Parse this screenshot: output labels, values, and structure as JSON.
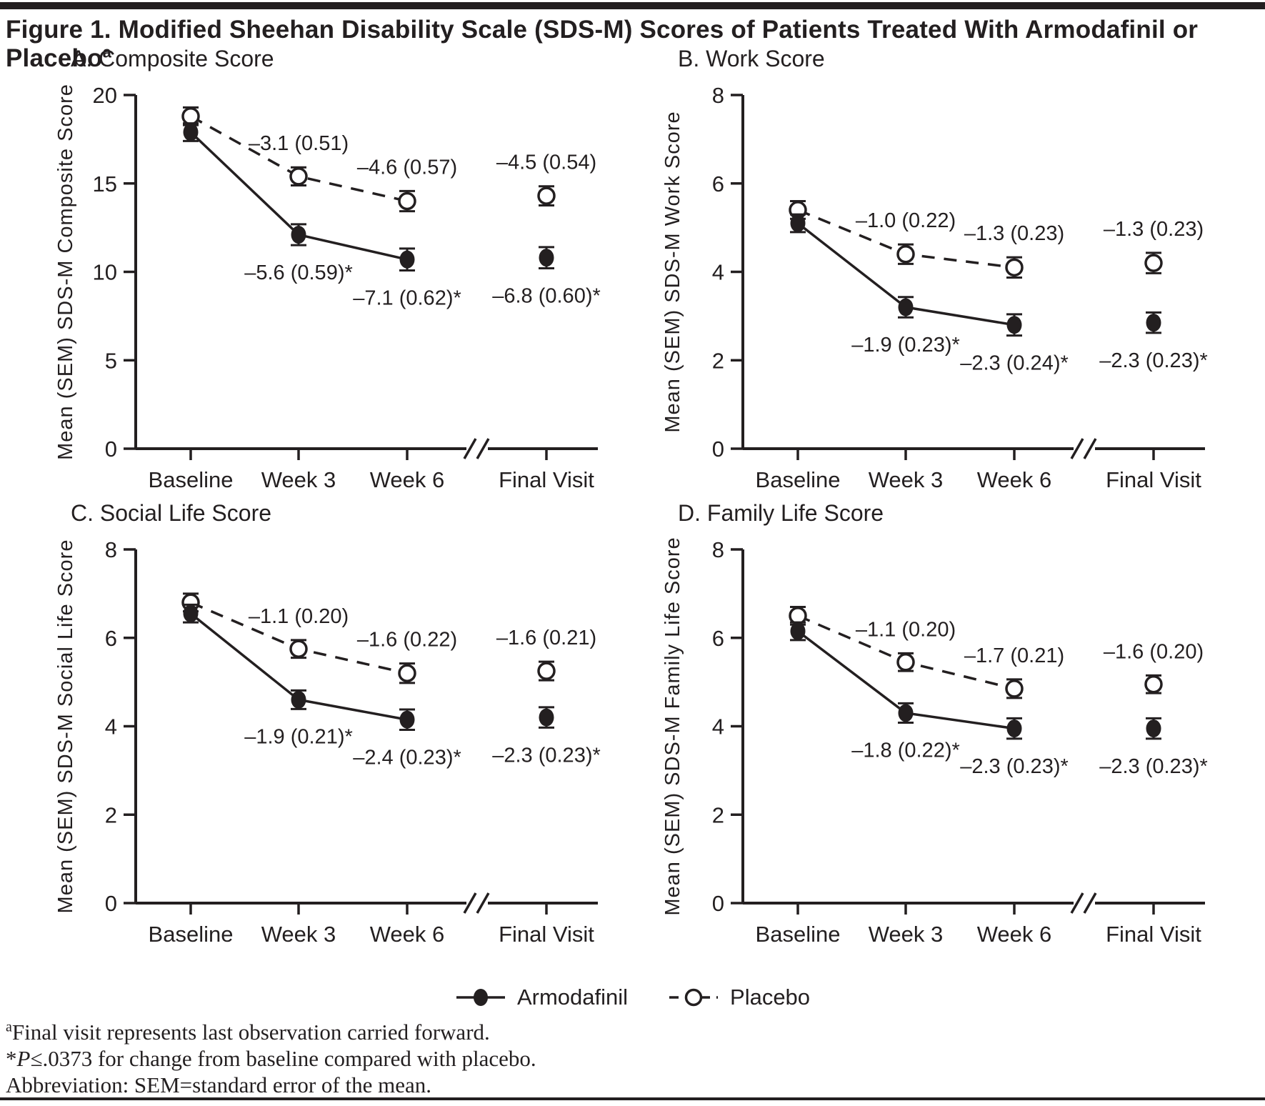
{
  "page": {
    "title": "Figure 1. Modified Sheehan Disability Scale (SDS-M) Scores of Patients Treated With Armodafinil or Placebo",
    "title_superscript": "a"
  },
  "colors": {
    "ink": "#231f20",
    "background": "#ffffff"
  },
  "legend": {
    "items": [
      {
        "label": "Armodafinil",
        "marker": "filled-circle",
        "line": "solid"
      },
      {
        "label": "Placebo",
        "marker": "open-circle",
        "line": "dashed"
      }
    ]
  },
  "footnotes": [
    {
      "marker": "a",
      "italic": "",
      "text": "Final visit represents last observation carried forward."
    },
    {
      "marker": "*",
      "italic": "P",
      "text": "≤.0373 for change from baseline compared with placebo."
    },
    {
      "marker": "",
      "italic": "",
      "text": "Abbreviation: SEM=standard error of the mean."
    }
  ],
  "chart_data": [
    {
      "type": "line",
      "panel_label": "A. Composite Score",
      "ylabel": "Mean (SEM) SDS-M Composite Score",
      "ylim": [
        0,
        20
      ],
      "yticks": [
        0,
        5,
        10,
        15,
        20
      ],
      "categories": [
        "Baseline",
        "Week 3",
        "Week 6",
        "Final Visit"
      ],
      "axis_break_between": [
        "Week 6",
        "Final Visit"
      ],
      "grid": false,
      "series": [
        {
          "name": "Armodafinil",
          "marker": "filled-circle",
          "line": "solid",
          "annotation_side": "below",
          "values": [
            17.9,
            12.1,
            10.7,
            10.8
          ],
          "sem": [
            0.5,
            0.59,
            0.62,
            0.6
          ],
          "annotations": [
            null,
            "–5.6 (0.59)*",
            "–7.1 (0.62)*",
            "–6.8 (0.60)*"
          ]
        },
        {
          "name": "Placebo",
          "marker": "open-circle",
          "line": "dashed",
          "annotation_side": "above",
          "values": [
            18.8,
            15.4,
            14.0,
            14.3
          ],
          "sem": [
            0.5,
            0.51,
            0.57,
            0.54
          ],
          "annotations": [
            null,
            "–3.1 (0.51)",
            "–4.6 (0.57)",
            "–4.5 (0.54)"
          ]
        }
      ]
    },
    {
      "type": "line",
      "panel_label": "B. Work Score",
      "ylabel": "Mean (SEM) SDS-M Work Score",
      "ylim": [
        0,
        8
      ],
      "yticks": [
        0,
        2,
        4,
        6,
        8
      ],
      "categories": [
        "Baseline",
        "Week 3",
        "Week 6",
        "Final Visit"
      ],
      "axis_break_between": [
        "Week 6",
        "Final Visit"
      ],
      "grid": false,
      "series": [
        {
          "name": "Armodafinil",
          "marker": "filled-circle",
          "line": "solid",
          "annotation_side": "below",
          "values": [
            5.1,
            3.2,
            2.8,
            2.85
          ],
          "sem": [
            0.2,
            0.23,
            0.24,
            0.23
          ],
          "annotations": [
            null,
            "–1.9 (0.23)*",
            "–2.3 (0.24)*",
            "–2.3 (0.23)*"
          ]
        },
        {
          "name": "Placebo",
          "marker": "open-circle",
          "line": "dashed",
          "annotation_side": "above",
          "values": [
            5.4,
            4.4,
            4.1,
            4.2
          ],
          "sem": [
            0.2,
            0.22,
            0.23,
            0.23
          ],
          "annotations": [
            null,
            "–1.0 (0.22)",
            "–1.3 (0.23)",
            "–1.3 (0.23)"
          ]
        }
      ]
    },
    {
      "type": "line",
      "panel_label": "C. Social Life Score",
      "ylabel": "Mean (SEM) SDS-M Social Life Score",
      "ylim": [
        0,
        8
      ],
      "yticks": [
        0,
        2,
        4,
        6,
        8
      ],
      "categories": [
        "Baseline",
        "Week 3",
        "Week 6",
        "Final Visit"
      ],
      "axis_break_between": [
        "Week 6",
        "Final Visit"
      ],
      "grid": false,
      "series": [
        {
          "name": "Armodafinil",
          "marker": "filled-circle",
          "line": "solid",
          "annotation_side": "below",
          "values": [
            6.55,
            4.6,
            4.15,
            4.2
          ],
          "sem": [
            0.2,
            0.21,
            0.23,
            0.23
          ],
          "annotations": [
            null,
            "–1.9 (0.21)*",
            "–2.4 (0.23)*",
            "–2.3 (0.23)*"
          ]
        },
        {
          "name": "Placebo",
          "marker": "open-circle",
          "line": "dashed",
          "annotation_side": "above",
          "values": [
            6.8,
            5.75,
            5.2,
            5.25
          ],
          "sem": [
            0.2,
            0.2,
            0.22,
            0.21
          ],
          "annotations": [
            null,
            "–1.1 (0.20)",
            "–1.6 (0.22)",
            "–1.6 (0.21)"
          ]
        }
      ]
    },
    {
      "type": "line",
      "panel_label": "D. Family Life Score",
      "ylabel": "Mean (SEM) SDS-M Family Life Score",
      "ylim": [
        0,
        8
      ],
      "yticks": [
        0,
        2,
        4,
        6,
        8
      ],
      "categories": [
        "Baseline",
        "Week 3",
        "Week 6",
        "Final Visit"
      ],
      "axis_break_between": [
        "Week 6",
        "Final Visit"
      ],
      "grid": false,
      "series": [
        {
          "name": "Armodafinil",
          "marker": "filled-circle",
          "line": "solid",
          "annotation_side": "below",
          "values": [
            6.15,
            4.3,
            3.95,
            3.95
          ],
          "sem": [
            0.2,
            0.22,
            0.23,
            0.23
          ],
          "annotations": [
            null,
            "–1.8 (0.22)*",
            "–2.3 (0.23)*",
            "–2.3 (0.23)*"
          ]
        },
        {
          "name": "Placebo",
          "marker": "open-circle",
          "line": "dashed",
          "annotation_side": "above",
          "values": [
            6.5,
            5.45,
            4.85,
            4.95
          ],
          "sem": [
            0.2,
            0.2,
            0.21,
            0.2
          ],
          "annotations": [
            null,
            "–1.1 (0.20)",
            "–1.7 (0.21)",
            "–1.6 (0.20)"
          ]
        }
      ]
    }
  ]
}
